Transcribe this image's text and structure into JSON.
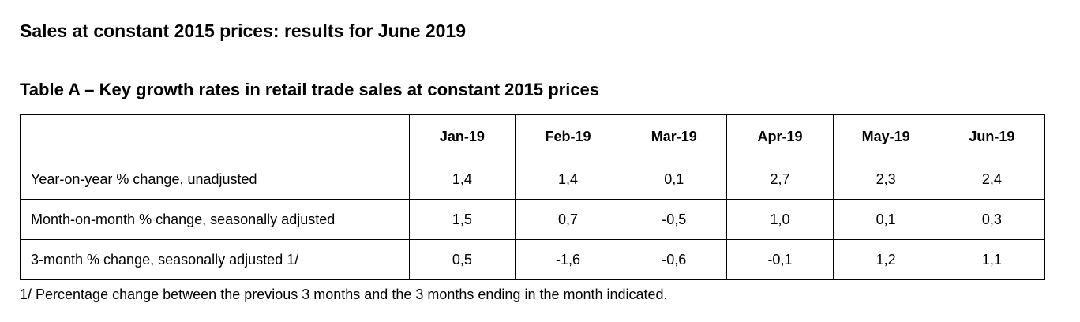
{
  "heading": "Sales at constant 2015 prices: results for June 2019",
  "table_title": "Table A – Key growth rates in retail trade sales at constant 2015 prices",
  "table": {
    "columns": [
      "Jan-19",
      "Feb-19",
      "Mar-19",
      "Apr-19",
      "May-19",
      "Jun-19"
    ],
    "rows": [
      {
        "label": "Year-on-year % change, unadjusted",
        "values": [
          "1,4",
          "1,4",
          "0,1",
          "2,7",
          "2,3",
          "2,4"
        ]
      },
      {
        "label": "Month-on-month % change, seasonally adjusted",
        "values": [
          "1,5",
          "0,7",
          "-0,5",
          "1,0",
          "0,1",
          "0,3"
        ]
      },
      {
        "label": "3-month % change, seasonally adjusted  1/",
        "values": [
          "0,5",
          "-1,6",
          "-0,6",
          "-0,1",
          "1,2",
          "1,1"
        ]
      }
    ]
  },
  "footnote": "1/ Percentage change between the previous 3 months and the 3 months ending in the month indicated."
}
